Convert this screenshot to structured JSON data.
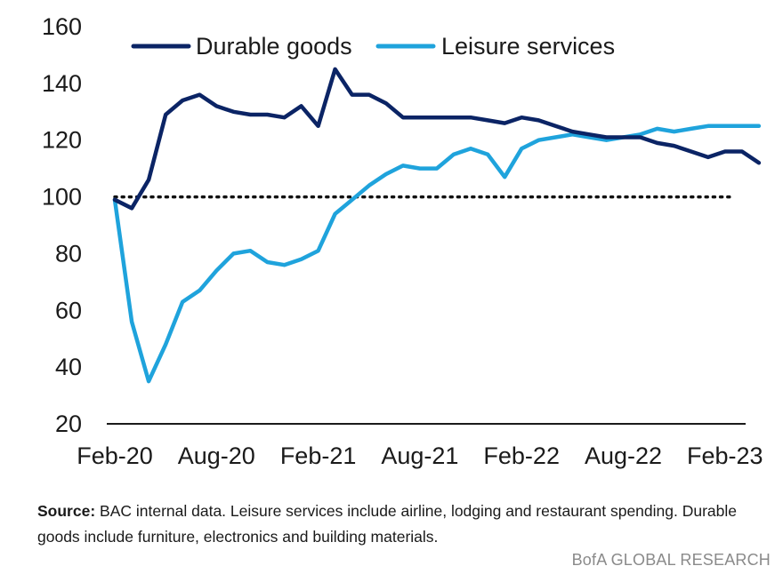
{
  "chart_data": {
    "type": "line",
    "x": [
      "Feb-20",
      "Mar-20",
      "Apr-20",
      "May-20",
      "Jun-20",
      "Jul-20",
      "Aug-20",
      "Sep-20",
      "Oct-20",
      "Nov-20",
      "Dec-20",
      "Jan-21",
      "Feb-21",
      "Mar-21",
      "Apr-21",
      "May-21",
      "Jun-21",
      "Jul-21",
      "Aug-21",
      "Sep-21",
      "Oct-21",
      "Nov-21",
      "Dec-21",
      "Jan-22",
      "Feb-22",
      "Mar-22",
      "Apr-22",
      "May-22",
      "Jun-22",
      "Jul-22",
      "Aug-22",
      "Sep-22",
      "Oct-22",
      "Nov-22",
      "Dec-22",
      "Jan-23",
      "Feb-23",
      "Mar-23",
      "Apr-23"
    ],
    "x_tick_labels": [
      "Feb-20",
      "Aug-20",
      "Feb-21",
      "Aug-21",
      "Feb-22",
      "Aug-22",
      "Feb-23"
    ],
    "ylim": [
      20,
      160
    ],
    "y_ticks": [
      "20",
      "40",
      "60",
      "80",
      "100",
      "120",
      "140",
      "160"
    ],
    "reference_line": 100,
    "grid": false,
    "legend_position": "top",
    "series": [
      {
        "name": "Durable goods",
        "color": "#0b2465",
        "values": [
          99,
          96,
          106,
          129,
          134,
          136,
          132,
          130,
          129,
          129,
          128,
          132,
          125,
          145,
          136,
          136,
          133,
          128,
          128,
          128,
          128,
          128,
          127,
          126,
          128,
          127,
          125,
          123,
          122,
          121,
          121,
          121,
          119,
          118,
          116,
          114,
          116,
          116,
          112
        ]
      },
      {
        "name": "Leisure services",
        "color": "#1fa3dc",
        "values": [
          99,
          56,
          35,
          48,
          63,
          67,
          74,
          80,
          81,
          77,
          76,
          78,
          81,
          94,
          99,
          104,
          108,
          111,
          110,
          110,
          115,
          117,
          115,
          107,
          117,
          120,
          121,
          122,
          121,
          120,
          121,
          122,
          124,
          123,
          124,
          125,
          125,
          125,
          125
        ]
      }
    ]
  },
  "footer": {
    "source_label": "Source:",
    "source_text": " BAC internal data. Leisure services include airline, lodging and restaurant spending. Durable goods  include furniture, electronics and building materials.",
    "brand": "BofA GLOBAL RESEARCH"
  }
}
